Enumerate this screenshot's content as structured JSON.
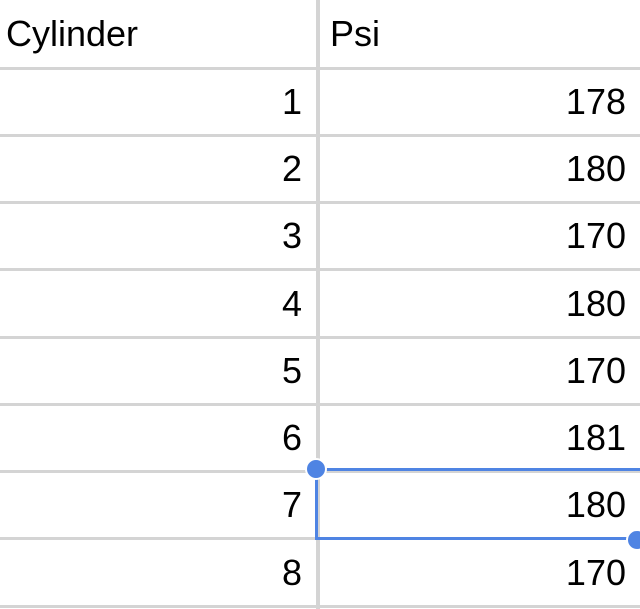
{
  "headers": [
    "Cylinder",
    "Psi"
  ],
  "rows": [
    [
      "1",
      "178"
    ],
    [
      "2",
      "180"
    ],
    [
      "3",
      "170"
    ],
    [
      "4",
      "180"
    ],
    [
      "5",
      "170"
    ],
    [
      "6",
      "181"
    ],
    [
      "7",
      "180"
    ],
    [
      "8",
      "170"
    ]
  ],
  "selection": {
    "row": 7,
    "column": "Psi",
    "value": "180"
  },
  "colors": {
    "selection": "#4f84e3",
    "gridline": "#d4d4d4"
  }
}
